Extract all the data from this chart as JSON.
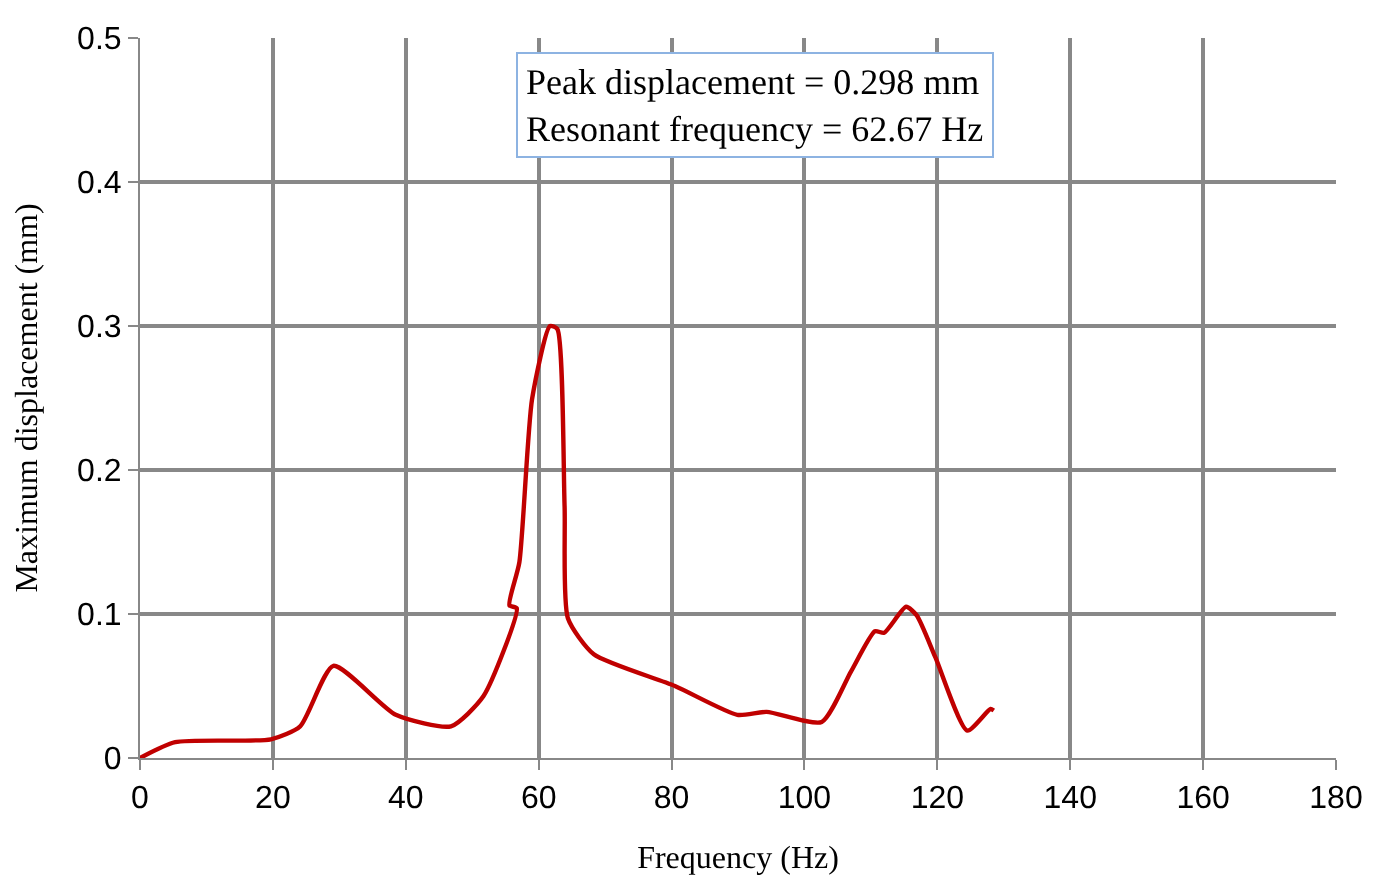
{
  "chart_data": {
    "type": "line",
    "xlabel": "Frequency (Hz)",
    "ylabel": "Maximum displacement (mm)",
    "x": [
      0,
      5.3,
      19.7,
      24.1,
      29.1,
      38.5,
      46.8,
      51.7,
      56.7,
      55.6,
      57.1,
      59.0,
      61.7,
      62.8,
      63.9,
      64.4,
      68.3,
      80.5,
      89.9,
      94.3,
      102.6,
      107.0,
      110.6,
      112.0,
      115.3,
      116.9,
      119.7,
      124.5,
      128.0,
      128.5
    ],
    "series": [
      {
        "color": "#c00000",
        "values": [
          0,
          0.011,
          0.013,
          0.022,
          0.064,
          0.03,
          0.022,
          0.043,
          0.104,
          0.106,
          0.136,
          0.249,
          0.3,
          0.298,
          0.175,
          0.097,
          0.072,
          0.05,
          0.03,
          0.032,
          0.025,
          0.06,
          0.088,
          0.087,
          0.105,
          0.099,
          0.07,
          0.019,
          0.034,
          0.033
        ]
      }
    ],
    "xlim": [
      0,
      180
    ],
    "xticks": [
      0,
      20,
      40,
      60,
      80,
      100,
      120,
      140,
      160,
      180
    ],
    "ylim": [
      0,
      0.5
    ],
    "yticks": [
      {
        "value": 0,
        "label": "0"
      },
      0.1,
      0.2,
      0.3,
      0.4,
      0.5
    ],
    "grid": true,
    "legend": false,
    "marker": "none",
    "line_style": "solid",
    "annotations": [
      "Peak displacement = 0.298 mm",
      "Resonant frequency = 62.67 Hz"
    ]
  }
}
